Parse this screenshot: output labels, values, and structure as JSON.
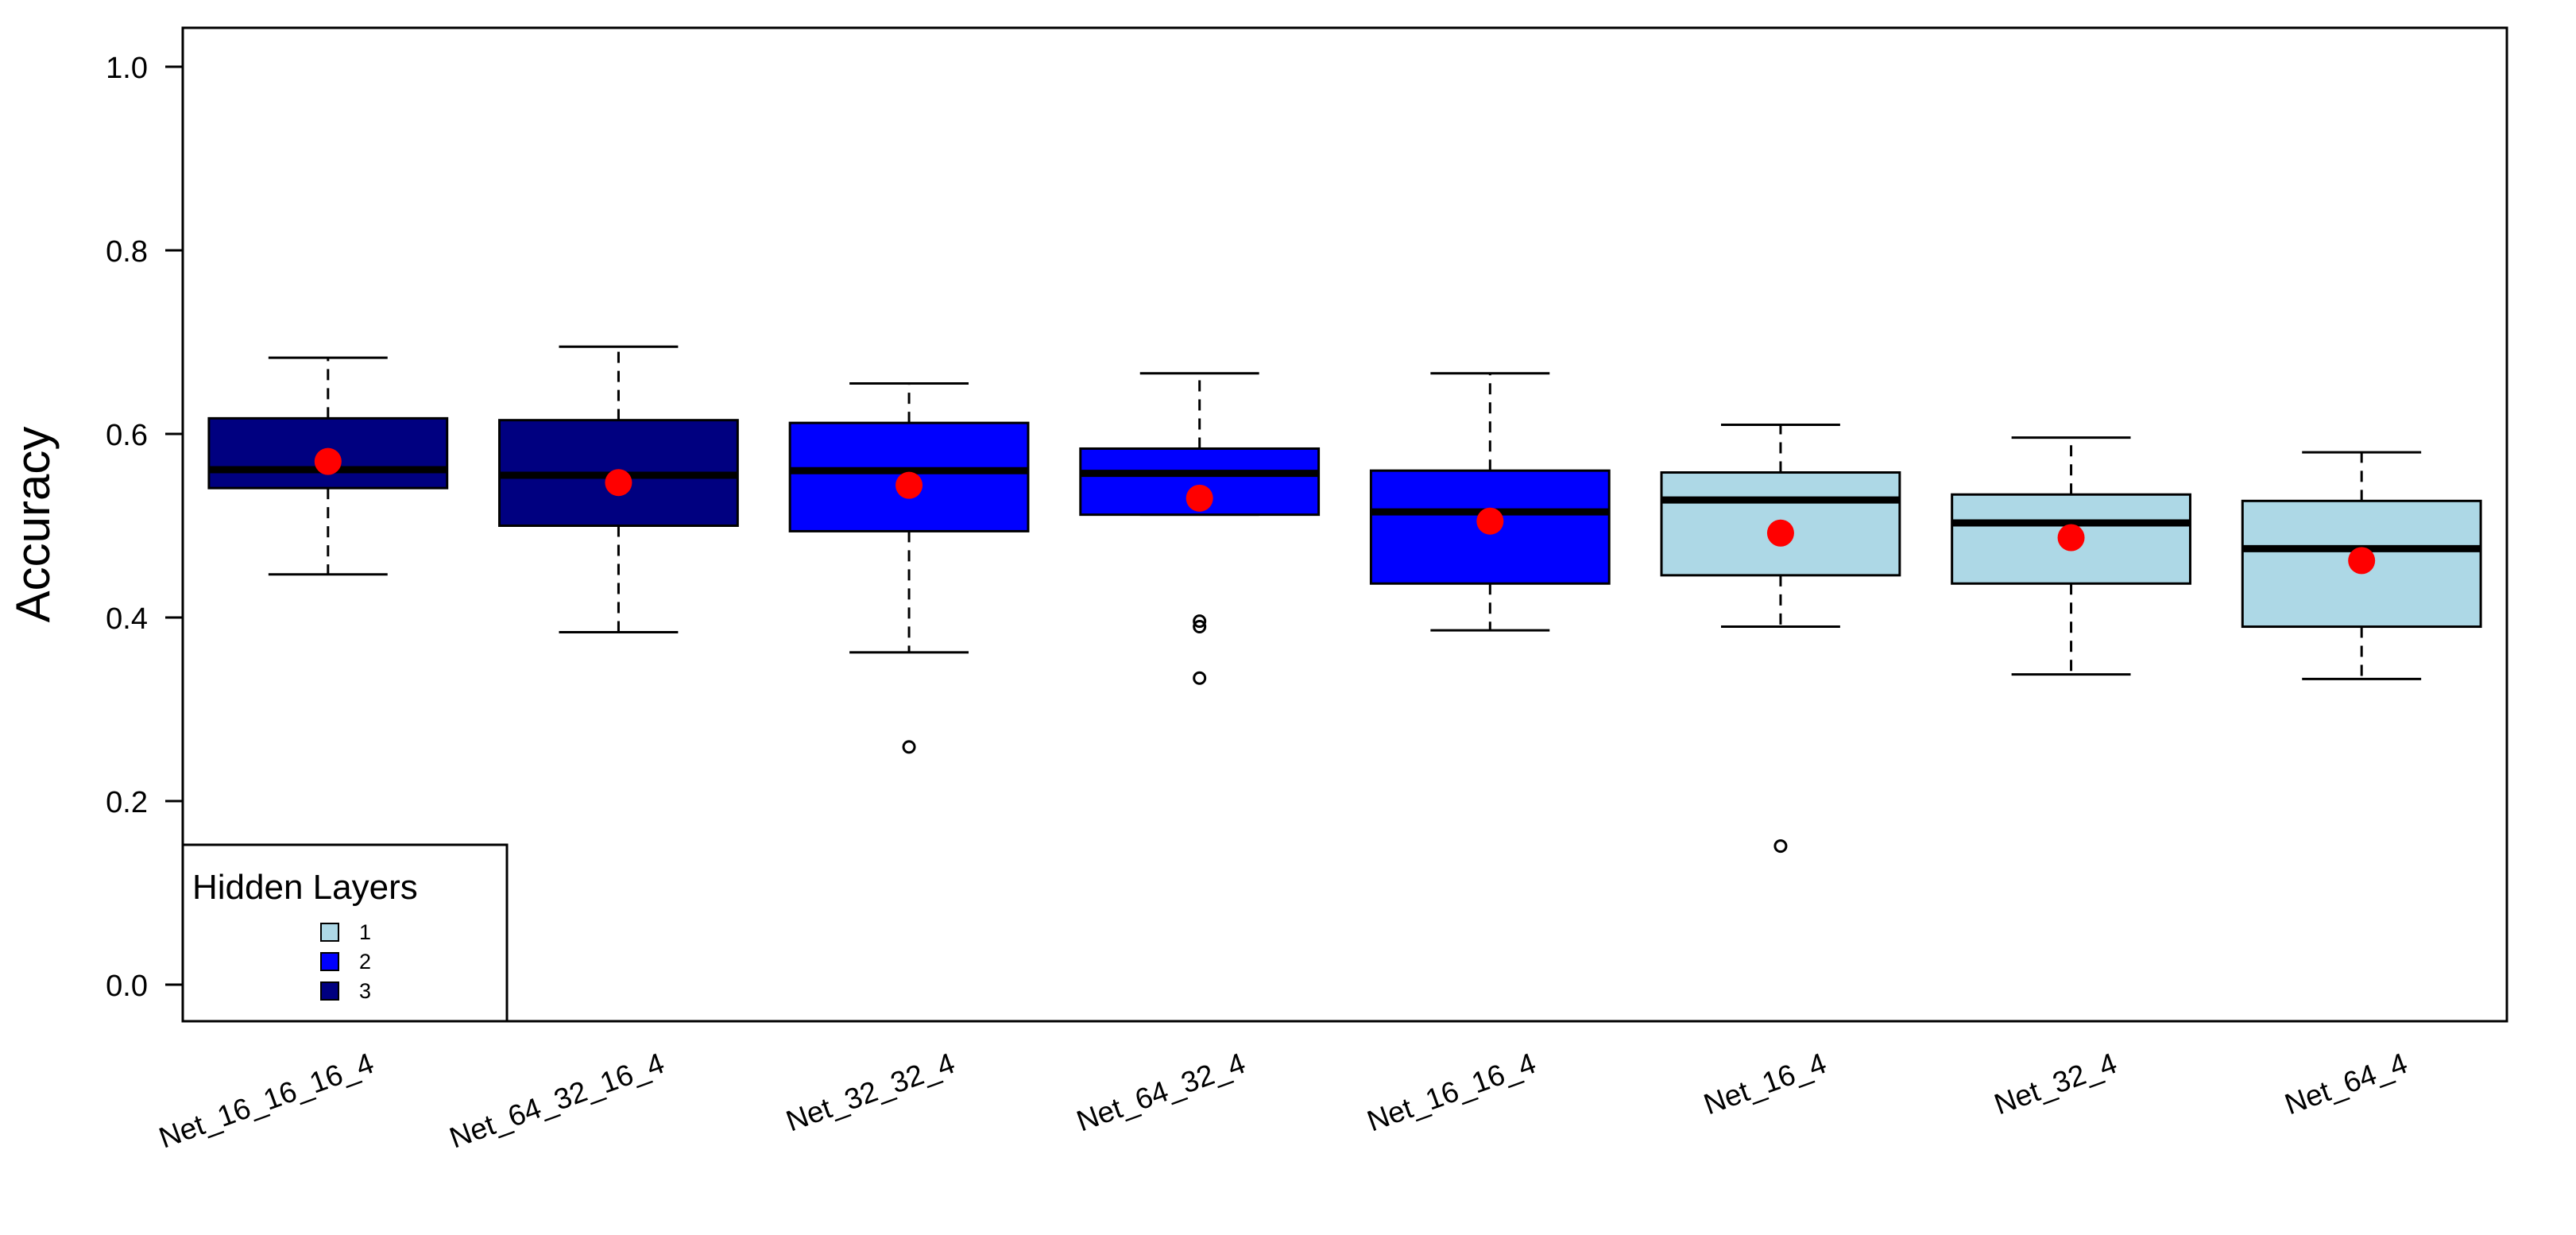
{
  "chart_data": {
    "type": "boxplot",
    "title": "",
    "xlabel": "",
    "ylabel": "Accuracy",
    "ylim": [
      -0.04,
      1.04
    ],
    "yticks": [
      "0.0",
      "0.2",
      "0.4",
      "0.6",
      "0.8",
      "1.0"
    ],
    "grid": false,
    "categories": [
      "Net_16_16_16_4",
      "Net_64_32_16_4",
      "Net_32_32_4",
      "Net_64_32_4",
      "Net_16_16_4",
      "Net_16_4",
      "Net_32_4",
      "Net_64_4"
    ],
    "hidden_layers": [
      3,
      3,
      2,
      2,
      2,
      1,
      1,
      1
    ],
    "boxes": [
      {
        "whisker_low": 0.447,
        "q1": 0.541,
        "median": 0.561,
        "q3": 0.617,
        "whisker_high": 0.683,
        "mean": 0.57,
        "outliers": []
      },
      {
        "whisker_low": 0.384,
        "q1": 0.5,
        "median": 0.555,
        "q3": 0.615,
        "whisker_high": 0.695,
        "mean": 0.547,
        "outliers": []
      },
      {
        "whisker_low": 0.362,
        "q1": 0.494,
        "median": 0.56,
        "q3": 0.612,
        "whisker_high": 0.655,
        "mean": 0.544,
        "outliers": [
          0.259
        ]
      },
      {
        "whisker_low": 0.512,
        "q1": 0.512,
        "median": 0.557,
        "q3": 0.584,
        "whisker_high": 0.666,
        "mean": 0.53,
        "outliers": [
          0.396,
          0.39,
          0.334
        ]
      },
      {
        "whisker_low": 0.386,
        "q1": 0.437,
        "median": 0.515,
        "q3": 0.56,
        "whisker_high": 0.666,
        "mean": 0.505,
        "outliers": []
      },
      {
        "whisker_low": 0.39,
        "q1": 0.446,
        "median": 0.528,
        "q3": 0.558,
        "whisker_high": 0.61,
        "mean": 0.492,
        "outliers": [
          0.151
        ]
      },
      {
        "whisker_low": 0.338,
        "q1": 0.437,
        "median": 0.503,
        "q3": 0.534,
        "whisker_high": 0.596,
        "mean": 0.487,
        "outliers": []
      },
      {
        "whisker_low": 0.333,
        "q1": 0.39,
        "median": 0.475,
        "q3": 0.527,
        "whisker_high": 0.58,
        "mean": 0.462,
        "outliers": []
      }
    ],
    "legend": {
      "title": "Hidden Layers",
      "position": "bottom-left",
      "items": [
        {
          "label": "1",
          "color": "#ADD8E6"
        },
        {
          "label": "2",
          "color": "#0000FF"
        },
        {
          "label": "3",
          "color": "#000080"
        }
      ]
    },
    "colors": {
      "1": "#ADD8E6",
      "2": "#0000FF",
      "3": "#000080"
    },
    "mean_color": "#FF0000"
  }
}
